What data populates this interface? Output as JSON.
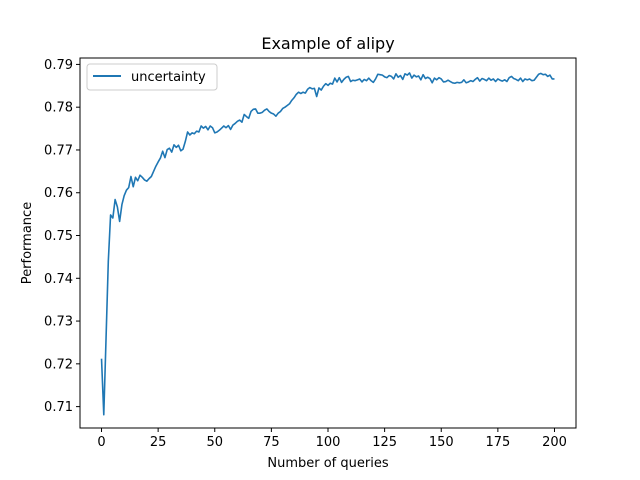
{
  "chart_data": {
    "type": "line",
    "title": "Example of alipy",
    "xlabel": "Number of queries",
    "ylabel": "Performance",
    "xlim": [
      -9.5,
      209.5
    ],
    "ylim": [
      0.705,
      0.7915
    ],
    "xticks": [
      0,
      25,
      50,
      75,
      100,
      125,
      150,
      175,
      200
    ],
    "xtick_labels": [
      "0",
      "25",
      "50",
      "75",
      "100",
      "125",
      "150",
      "175",
      "200"
    ],
    "yticks": [
      0.71,
      0.72,
      0.73,
      0.74,
      0.75,
      0.76,
      0.77,
      0.78,
      0.79
    ],
    "ytick_labels": [
      "0.71",
      "0.72",
      "0.73",
      "0.74",
      "0.75",
      "0.76",
      "0.77",
      "0.78",
      "0.79"
    ],
    "grid": false,
    "legend": {
      "placement": "top-left"
    },
    "series": [
      {
        "name": "uncertainty",
        "color": "#1f77b4",
        "points": [
          [
            0,
            0.7212
          ],
          [
            1,
            0.7081
          ],
          [
            2,
            0.726
          ],
          [
            3,
            0.744
          ],
          [
            4,
            0.7548
          ],
          [
            5,
            0.7541
          ],
          [
            6,
            0.7584
          ],
          [
            7,
            0.7567
          ],
          [
            8,
            0.7533
          ],
          [
            9,
            0.7572
          ],
          [
            10,
            0.7593
          ],
          [
            11,
            0.7606
          ],
          [
            12,
            0.7612
          ],
          [
            13,
            0.7638
          ],
          [
            14,
            0.7614
          ],
          [
            15,
            0.7636
          ],
          [
            16,
            0.7628
          ],
          [
            17,
            0.7641
          ],
          [
            18,
            0.7636
          ],
          [
            19,
            0.763
          ],
          [
            20,
            0.7627
          ],
          [
            21,
            0.7633
          ],
          [
            22,
            0.7638
          ],
          [
            23,
            0.765
          ],
          [
            24,
            0.7662
          ],
          [
            25,
            0.7672
          ],
          [
            26,
            0.7681
          ],
          [
            27,
            0.7697
          ],
          [
            28,
            0.7682
          ],
          [
            29,
            0.7701
          ],
          [
            30,
            0.7704
          ],
          [
            31,
            0.7695
          ],
          [
            32,
            0.7712
          ],
          [
            33,
            0.7706
          ],
          [
            34,
            0.7711
          ],
          [
            35,
            0.7698
          ],
          [
            36,
            0.7702
          ],
          [
            37,
            0.772
          ],
          [
            38,
            0.7742
          ],
          [
            39,
            0.7735
          ],
          [
            40,
            0.774
          ],
          [
            41,
            0.7738
          ],
          [
            42,
            0.7744
          ],
          [
            43,
            0.7742
          ],
          [
            44,
            0.7756
          ],
          [
            45,
            0.7751
          ],
          [
            46,
            0.7755
          ],
          [
            47,
            0.7747
          ],
          [
            48,
            0.7756
          ],
          [
            49,
            0.7752
          ],
          [
            50,
            0.774
          ],
          [
            51,
            0.7742
          ],
          [
            52,
            0.7746
          ],
          [
            53,
            0.7751
          ],
          [
            54,
            0.7756
          ],
          [
            55,
            0.7752
          ],
          [
            56,
            0.7757
          ],
          [
            57,
            0.7748
          ],
          [
            58,
            0.7758
          ],
          [
            59,
            0.7762
          ],
          [
            60,
            0.7767
          ],
          [
            61,
            0.777
          ],
          [
            62,
            0.7765
          ],
          [
            63,
            0.7783
          ],
          [
            64,
            0.7778
          ],
          [
            65,
            0.7774
          ],
          [
            66,
            0.779
          ],
          [
            67,
            0.7795
          ],
          [
            68,
            0.7796
          ],
          [
            69,
            0.7786
          ],
          [
            70,
            0.7786
          ],
          [
            71,
            0.7788
          ],
          [
            72,
            0.7793
          ],
          [
            73,
            0.7796
          ],
          [
            74,
            0.779
          ],
          [
            75,
            0.7786
          ],
          [
            76,
            0.7784
          ],
          [
            77,
            0.7779
          ],
          [
            78,
            0.7786
          ],
          [
            79,
            0.779
          ],
          [
            80,
            0.7797
          ],
          [
            81,
            0.78
          ],
          [
            82,
            0.7804
          ],
          [
            83,
            0.7808
          ],
          [
            84,
            0.7816
          ],
          [
            85,
            0.7822
          ],
          [
            86,
            0.783
          ],
          [
            87,
            0.7835
          ],
          [
            88,
            0.7832
          ],
          [
            89,
            0.7835
          ],
          [
            90,
            0.7833
          ],
          [
            91,
            0.7842
          ],
          [
            92,
            0.7846
          ],
          [
            93,
            0.7843
          ],
          [
            94,
            0.7844
          ],
          [
            95,
            0.7825
          ],
          [
            96,
            0.7845
          ],
          [
            97,
            0.784
          ],
          [
            98,
            0.7849
          ],
          [
            99,
            0.7855
          ],
          [
            100,
            0.7851
          ],
          [
            101,
            0.7856
          ],
          [
            102,
            0.7854
          ],
          [
            103,
            0.7868
          ],
          [
            104,
            0.7859
          ],
          [
            105,
            0.7869
          ],
          [
            106,
            0.7858
          ],
          [
            107,
            0.7865
          ],
          [
            108,
            0.787
          ],
          [
            109,
            0.7872
          ],
          [
            110,
            0.786
          ],
          [
            111,
            0.7863
          ],
          [
            112,
            0.7862
          ],
          [
            113,
            0.7864
          ],
          [
            114,
            0.7866
          ],
          [
            115,
            0.7859
          ],
          [
            116,
            0.7865
          ],
          [
            117,
            0.7862
          ],
          [
            118,
            0.7868
          ],
          [
            119,
            0.7862
          ],
          [
            120,
            0.7858
          ],
          [
            121,
            0.7866
          ],
          [
            122,
            0.7877
          ],
          [
            123,
            0.7876
          ],
          [
            124,
            0.7875
          ],
          [
            125,
            0.7871
          ],
          [
            126,
            0.7869
          ],
          [
            127,
            0.7874
          ],
          [
            128,
            0.7872
          ],
          [
            129,
            0.7866
          ],
          [
            130,
            0.7878
          ],
          [
            131,
            0.787
          ],
          [
            132,
            0.7874
          ],
          [
            133,
            0.7865
          ],
          [
            134,
            0.7878
          ],
          [
            135,
            0.7875
          ],
          [
            136,
            0.788
          ],
          [
            137,
            0.7868
          ],
          [
            138,
            0.7875
          ],
          [
            139,
            0.7871
          ],
          [
            140,
            0.7873
          ],
          [
            141,
            0.7864
          ],
          [
            142,
            0.7876
          ],
          [
            143,
            0.7867
          ],
          [
            144,
            0.787
          ],
          [
            145,
            0.7867
          ],
          [
            146,
            0.7857
          ],
          [
            147,
            0.7868
          ],
          [
            148,
            0.7864
          ],
          [
            149,
            0.7869
          ],
          [
            150,
            0.7866
          ],
          [
            151,
            0.7859
          ],
          [
            152,
            0.786
          ],
          [
            153,
            0.7863
          ],
          [
            154,
            0.786
          ],
          [
            155,
            0.7857
          ],
          [
            156,
            0.7856
          ],
          [
            157,
            0.7858
          ],
          [
            158,
            0.7857
          ],
          [
            159,
            0.7858
          ],
          [
            160,
            0.7864
          ],
          [
            161,
            0.7857
          ],
          [
            162,
            0.7859
          ],
          [
            163,
            0.7862
          ],
          [
            164,
            0.786
          ],
          [
            165,
            0.7865
          ],
          [
            166,
            0.7869
          ],
          [
            167,
            0.7861
          ],
          [
            168,
            0.7867
          ],
          [
            169,
            0.7865
          ],
          [
            170,
            0.7862
          ],
          [
            171,
            0.7868
          ],
          [
            172,
            0.7863
          ],
          [
            173,
            0.7866
          ],
          [
            174,
            0.786
          ],
          [
            175,
            0.7866
          ],
          [
            176,
            0.7863
          ],
          [
            177,
            0.7861
          ],
          [
            178,
            0.7864
          ],
          [
            179,
            0.786
          ],
          [
            180,
            0.7869
          ],
          [
            181,
            0.7872
          ],
          [
            182,
            0.7867
          ],
          [
            183,
            0.7865
          ],
          [
            184,
            0.7862
          ],
          [
            185,
            0.7868
          ],
          [
            186,
            0.786
          ],
          [
            187,
            0.7866
          ],
          [
            188,
            0.7864
          ],
          [
            189,
            0.7866
          ],
          [
            190,
            0.7862
          ],
          [
            191,
            0.7863
          ],
          [
            192,
            0.787
          ],
          [
            193,
            0.7877
          ],
          [
            194,
            0.7879
          ],
          [
            195,
            0.7876
          ],
          [
            196,
            0.7877
          ],
          [
            197,
            0.7872
          ],
          [
            198,
            0.7875
          ],
          [
            199,
            0.7866
          ],
          [
            200,
            0.7866
          ]
        ]
      }
    ]
  }
}
